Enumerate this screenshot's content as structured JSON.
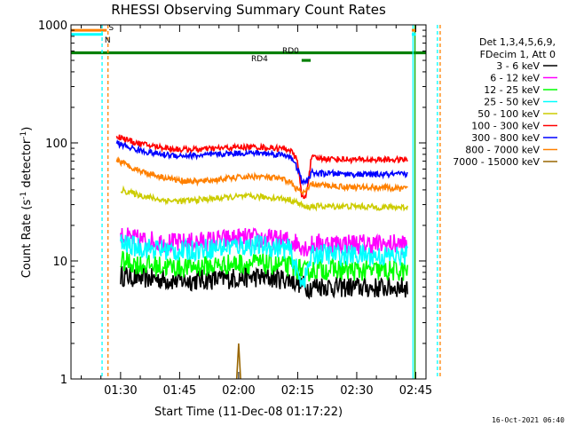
{
  "chart_data": {
    "type": "line",
    "title": "RHESSI Observing Summary Count Rates",
    "xlabel": "Start Time (11-Dec-08 01:17:22)",
    "ylabel_main": "Count Rate (s",
    "ylabel_sup1": "-1",
    "ylabel_mid": " detector",
    "ylabel_sup2": "-1",
    "ylabel_end": ")",
    "yscale": "log",
    "ylim": [
      1,
      1000
    ],
    "xlim_minutes": [
      17.4,
      107.6
    ],
    "x_ticks": [
      {
        "m": 30,
        "label": "01:30"
      },
      {
        "m": 45,
        "label": "01:45"
      },
      {
        "m": 60,
        "label": "02:00"
      },
      {
        "m": 75,
        "label": "02:15"
      },
      {
        "m": 90,
        "label": "02:30"
      },
      {
        "m": 105,
        "label": "02:45"
      }
    ],
    "y_ticks": [
      {
        "v": 1,
        "label": "1"
      },
      {
        "v": 10,
        "label": "10"
      },
      {
        "v": 100,
        "label": "100"
      },
      {
        "v": 1000,
        "label": "1000"
      }
    ],
    "legend_header": [
      "Det 1,3,4,5,6,9,",
      "FDecim 1, Att 0"
    ],
    "series": [
      {
        "name": "3 - 6 keV",
        "color": "#000000",
        "points": [
          [
            30,
            7.5
          ],
          [
            35,
            7.2
          ],
          [
            40,
            7.0
          ],
          [
            45,
            6.8
          ],
          [
            50,
            6.9
          ],
          [
            55,
            7.0
          ],
          [
            60,
            7.2
          ],
          [
            65,
            7.3
          ],
          [
            70,
            7.1
          ],
          [
            73,
            7.0
          ],
          [
            75.5,
            6.5
          ],
          [
            77,
            6.0
          ],
          [
            78.5,
            6.0
          ],
          [
            80,
            6.2
          ],
          [
            85,
            6.0
          ],
          [
            90,
            6.0
          ],
          [
            95,
            5.9
          ],
          [
            100,
            6.0
          ],
          [
            103,
            6.0
          ]
        ]
      },
      {
        "name": "6 - 12 keV",
        "color": "#ff00ff",
        "points": [
          [
            30,
            16
          ],
          [
            35,
            15
          ],
          [
            40,
            14.5
          ],
          [
            45,
            14
          ],
          [
            50,
            14.5
          ],
          [
            55,
            15
          ],
          [
            60,
            15.5
          ],
          [
            65,
            15.5
          ],
          [
            70,
            15
          ],
          [
            73,
            14.8
          ],
          [
            75.5,
            14
          ],
          [
            77,
            13
          ],
          [
            78.5,
            13.5
          ],
          [
            80,
            14
          ],
          [
            85,
            14
          ],
          [
            90,
            14
          ],
          [
            95,
            13.8
          ],
          [
            100,
            13.8
          ],
          [
            103,
            13.8
          ]
        ]
      },
      {
        "name": "12 - 25 keV",
        "color": "#00ff00",
        "points": [
          [
            30,
            10
          ],
          [
            35,
            9.3
          ],
          [
            40,
            9.0
          ],
          [
            45,
            8.8
          ],
          [
            50,
            9.0
          ],
          [
            55,
            9.2
          ],
          [
            60,
            9.5
          ],
          [
            65,
            9.5
          ],
          [
            70,
            9.2
          ],
          [
            73,
            9.0
          ],
          [
            75.5,
            8.5
          ],
          [
            77,
            8.0
          ],
          [
            78.5,
            8.3
          ],
          [
            80,
            8.5
          ],
          [
            85,
            8.4
          ],
          [
            90,
            8.3
          ],
          [
            95,
            8.2
          ],
          [
            100,
            8.2
          ],
          [
            103,
            8.2
          ]
        ]
      },
      {
        "name": "25 - 50 keV",
        "color": "#00ffff",
        "points": [
          [
            30,
            14
          ],
          [
            35,
            13
          ],
          [
            40,
            12.5
          ],
          [
            45,
            12
          ],
          [
            50,
            12.5
          ],
          [
            55,
            13
          ],
          [
            60,
            13.5
          ],
          [
            65,
            13.5
          ],
          [
            70,
            13
          ],
          [
            73,
            12.5
          ],
          [
            75.5,
            7.0
          ],
          [
            77,
            7.2
          ],
          [
            78.5,
            11
          ],
          [
            80,
            11.5
          ],
          [
            85,
            11.3
          ],
          [
            90,
            11.2
          ],
          [
            95,
            11
          ],
          [
            100,
            11
          ],
          [
            103,
            11
          ]
        ]
      },
      {
        "name": "50 - 100 keV",
        "color": "#cccc00",
        "points": [
          [
            30,
            40
          ],
          [
            35,
            36
          ],
          [
            40,
            33
          ],
          [
            45,
            32
          ],
          [
            50,
            33
          ],
          [
            55,
            34
          ],
          [
            60,
            35
          ],
          [
            65,
            35
          ],
          [
            70,
            34
          ],
          [
            73,
            33
          ],
          [
            75,
            31
          ],
          [
            76,
            30
          ],
          [
            77,
            28
          ],
          [
            78.5,
            29
          ],
          [
            80,
            29
          ],
          [
            85,
            29
          ],
          [
            90,
            29
          ],
          [
            95,
            28.5
          ],
          [
            100,
            28.5
          ],
          [
            103,
            28.5
          ]
        ]
      },
      {
        "name": "100 - 300 keV",
        "color": "#ff0000",
        "points": [
          [
            29,
            115
          ],
          [
            32,
            105
          ],
          [
            35,
            98
          ],
          [
            40,
            92
          ],
          [
            45,
            88
          ],
          [
            50,
            88
          ],
          [
            55,
            90
          ],
          [
            60,
            92
          ],
          [
            65,
            92
          ],
          [
            70,
            90
          ],
          [
            73,
            88
          ],
          [
            75,
            70
          ],
          [
            76,
            35
          ],
          [
            77,
            34
          ],
          [
            78.5,
            75
          ],
          [
            80,
            74
          ],
          [
            85,
            73
          ],
          [
            90,
            72
          ],
          [
            95,
            72
          ],
          [
            100,
            72
          ],
          [
            103,
            72
          ]
        ]
      },
      {
        "name": "300 - 800 keV",
        "color": "#0000ff",
        "points": [
          [
            29,
            100
          ],
          [
            32,
            92
          ],
          [
            35,
            86
          ],
          [
            40,
            80
          ],
          [
            45,
            78
          ],
          [
            50,
            78
          ],
          [
            55,
            80
          ],
          [
            60,
            82
          ],
          [
            65,
            82
          ],
          [
            70,
            80
          ],
          [
            73,
            78
          ],
          [
            75,
            60
          ],
          [
            76,
            48
          ],
          [
            77,
            45
          ],
          [
            78.5,
            56
          ],
          [
            80,
            55
          ],
          [
            85,
            55
          ],
          [
            90,
            54
          ],
          [
            95,
            54
          ],
          [
            100,
            54
          ],
          [
            103,
            54
          ]
        ]
      },
      {
        "name": "800 - 7000 keV",
        "color": "#ff8000",
        "points": [
          [
            29,
            72
          ],
          [
            32,
            64
          ],
          [
            35,
            58
          ],
          [
            40,
            52
          ],
          [
            45,
            48
          ],
          [
            50,
            47
          ],
          [
            55,
            49
          ],
          [
            60,
            51
          ],
          [
            65,
            52
          ],
          [
            70,
            50
          ],
          [
            73,
            47
          ],
          [
            75,
            40
          ],
          [
            76,
            38
          ],
          [
            77,
            38
          ],
          [
            78.5,
            45
          ],
          [
            80,
            44
          ],
          [
            85,
            43
          ],
          [
            90,
            42
          ],
          [
            95,
            42
          ],
          [
            100,
            41
          ],
          [
            103,
            41
          ]
        ]
      },
      {
        "name": "7000 - 15000 keV",
        "color": "#996600",
        "points": [
          [
            59.5,
            1.0
          ],
          [
            60,
            2.0
          ],
          [
            60.5,
            1.0
          ]
        ]
      }
    ],
    "attenuator_bars": [
      {
        "label": "S",
        "color": "#ff8000",
        "level": 900,
        "start": 17.4,
        "end": 26.5
      },
      {
        "label": "N",
        "color": "#00ffff",
        "level": 830,
        "start": 17.4,
        "end": 25.5
      }
    ],
    "attenuator_bars_right": [
      {
        "color": "#ff8000",
        "level": 900,
        "start": 105,
        "end": 107.6
      },
      {
        "color": "#00ffff",
        "level": 830,
        "start": 105,
        "end": 107.6
      }
    ],
    "rd_bars": [
      {
        "label": "RD0",
        "level": 580,
        "start": 17.4,
        "end": 107.6
      },
      {
        "label": "RD4",
        "level": 500,
        "start": 76,
        "end": 78.3
      }
    ],
    "v_lines": [
      {
        "m": 25.3,
        "color": "#00ffff",
        "dash": true
      },
      {
        "m": 26.8,
        "color": "#ff8000",
        "dash": true
      },
      {
        "m": 104.3,
        "color": "#00ffff",
        "dash": false
      },
      {
        "m": 104.8,
        "color": "#00aa00",
        "dash": false
      },
      {
        "m": 110.5,
        "color": "#00ffff",
        "dash": true
      },
      {
        "m": 111.2,
        "color": "#ff8000",
        "dash": true
      }
    ],
    "footer_stamp": "16-Oct-2021 06:40"
  }
}
